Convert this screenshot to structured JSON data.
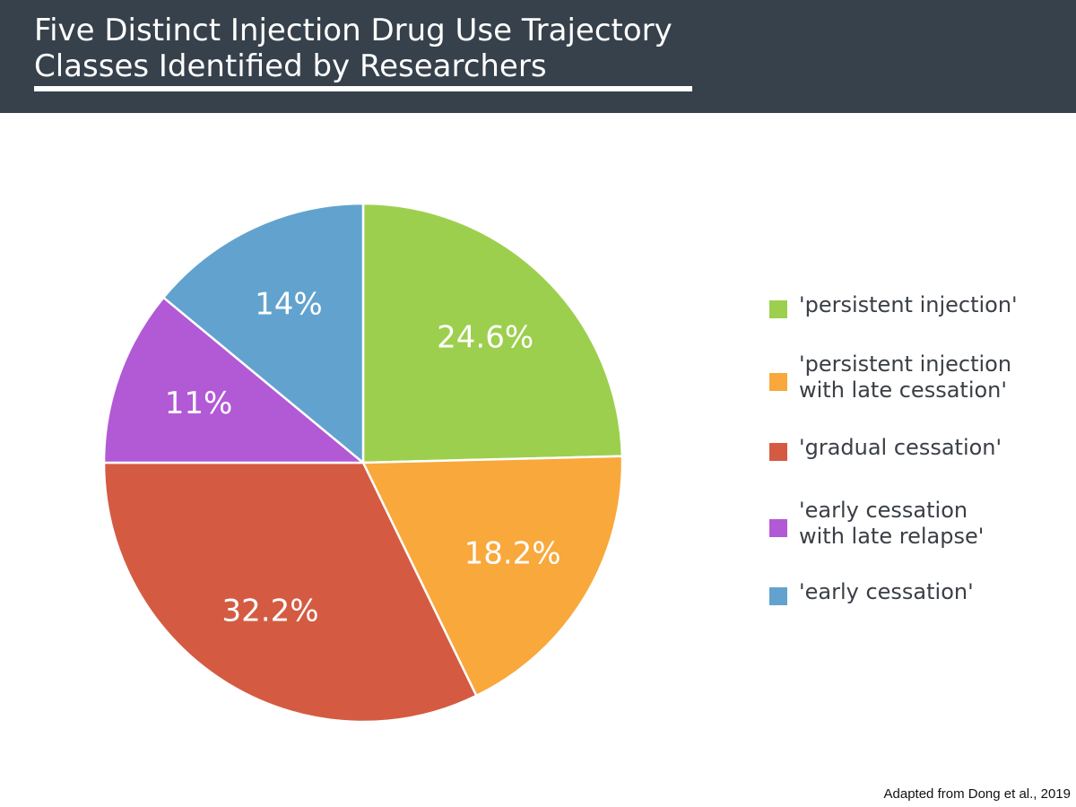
{
  "header": {
    "title_line1": "Five Distinct Injection Drug Use Trajectory",
    "title_line2": "Classes Identified by Researchers",
    "background": "#37414b"
  },
  "chart_data": {
    "type": "pie",
    "title": "Five Distinct Injection Drug Use Trajectory Classes Identified by Researchers",
    "start": "12 o'clock",
    "direction": "clockwise",
    "slices": [
      {
        "label": "'persistent injection'",
        "value": 24.6,
        "display": "24.6%",
        "color": "#9dcf4e"
      },
      {
        "label": "'persistent injection with late cessation'",
        "value": 18.2,
        "display": "18.2%",
        "color": "#f9a83c"
      },
      {
        "label": "'gradual cessation'",
        "value": 32.2,
        "display": "32.2%",
        "color": "#d45b42"
      },
      {
        "label": "'early cessation with late relapse'",
        "value": 11,
        "display": "11%",
        "color": "#b259d5"
      },
      {
        "label": "'early cessation'",
        "value": 14,
        "display": "14%",
        "color": "#62a2ce"
      }
    ],
    "legend_position": "right"
  },
  "legend": {
    "items": [
      {
        "label": "'persistent injection'",
        "color": "#9dcf4e"
      },
      {
        "label": "'persistent injection\nwith late cessation'",
        "color": "#f9a83c"
      },
      {
        "label": "'gradual cessation'",
        "color": "#d45b42"
      },
      {
        "label": "'early cessation\nwith late relapse'",
        "color": "#b259d5"
      },
      {
        "label": "'early cessation'",
        "color": "#62a2ce"
      }
    ]
  },
  "footer": {
    "source": "Adapted from Dong et al., 2019"
  }
}
